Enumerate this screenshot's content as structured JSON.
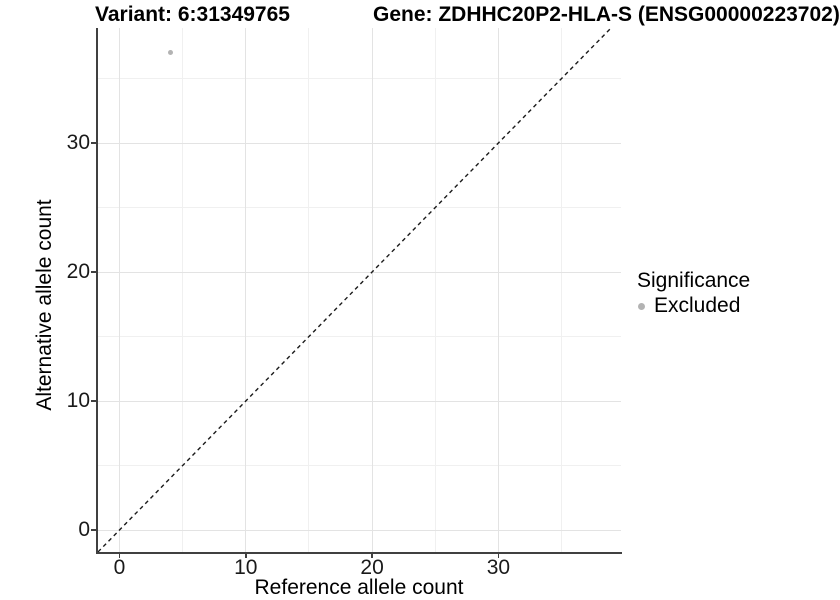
{
  "titles": {
    "variant": "Variant: 6:31349765",
    "gene": "Gene: ZDHHC20P2-HLA-S (ENSG00000223702)"
  },
  "chart_data": {
    "type": "scatter",
    "xlabel": "Reference allele count",
    "ylabel": "Alternative allele count",
    "x_ticks": [
      0,
      10,
      20,
      30
    ],
    "y_ticks": [
      0,
      10,
      20,
      30
    ],
    "x_minor_ticks": [
      5,
      15,
      25,
      35
    ],
    "y_minor_ticks": [
      5,
      15,
      25,
      35
    ],
    "xlim": [
      -1.8,
      39.8
    ],
    "ylim": [
      -1.7,
      38.9
    ],
    "grid": true,
    "identity_line": {
      "type": "abline",
      "slope": 1,
      "intercept": 0,
      "style": "dashed",
      "color": "#1a1a1a"
    },
    "series": [
      {
        "name": "Excluded",
        "color": "#b3b3b3",
        "points": [
          {
            "x": 4,
            "y": 37
          }
        ]
      }
    ],
    "legend": {
      "position": "right",
      "title": "Significance",
      "items": [
        {
          "label": "Excluded",
          "color": "#b3b3b3"
        }
      ]
    }
  },
  "colors": {
    "axis_line": "#404040",
    "grid_major": "#e3e3e3",
    "grid_minor": "#f0f0f0",
    "point": "#b9b9b9"
  }
}
